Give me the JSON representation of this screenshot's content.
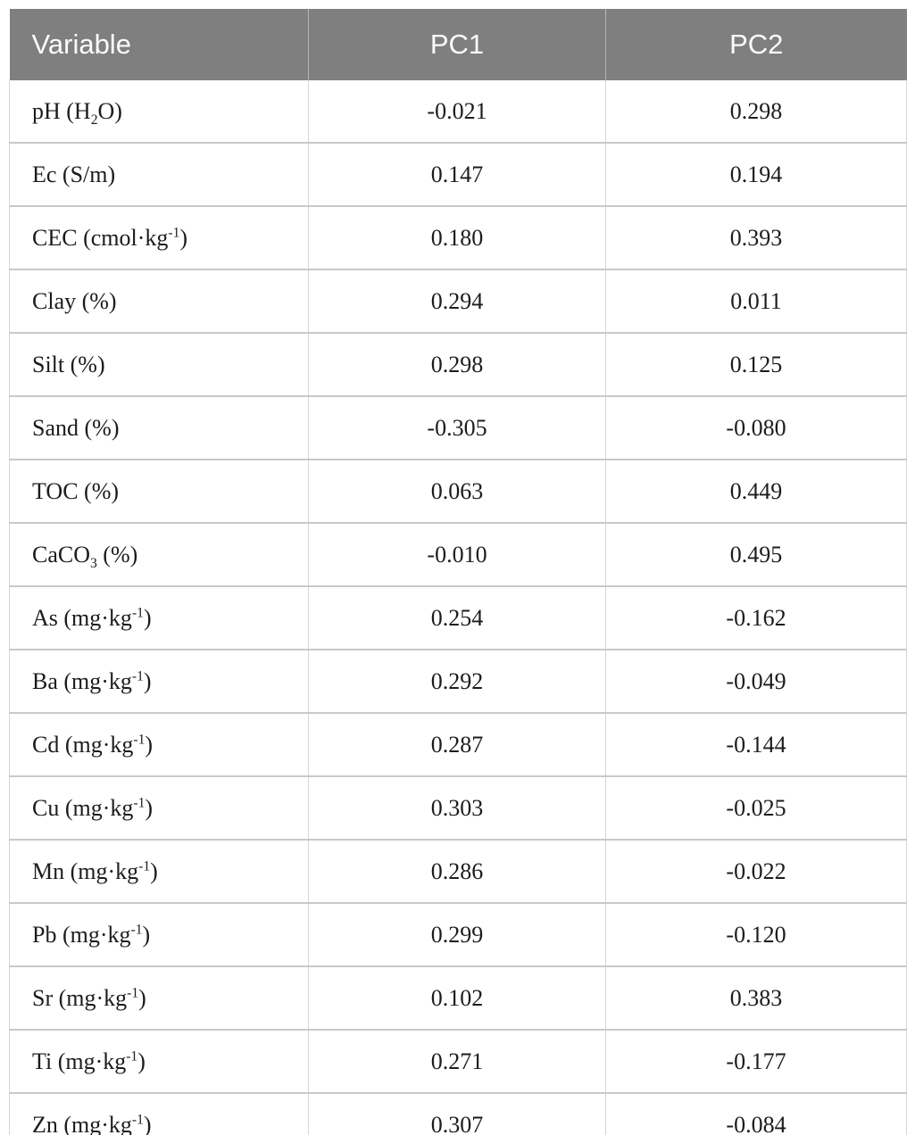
{
  "colors": {
    "header_background": "#7f7f7f",
    "header_text": "#fbfbfb",
    "body_text": "#1c1c1c",
    "grid_line": "#c9c9c9",
    "page_background": "#ffffff"
  },
  "table": {
    "columns": [
      "Variable",
      "PC1",
      "PC2"
    ],
    "rows": [
      {
        "variable": [
          {
            "t": "pH (H"
          },
          {
            "t": "2",
            "s": "sub"
          },
          {
            "t": "O)"
          }
        ],
        "pc1": "-0.021",
        "pc2": "0.298"
      },
      {
        "variable": [
          {
            "t": "Ec (S/m)"
          }
        ],
        "pc1": "0.147",
        "pc2": "0.194"
      },
      {
        "variable": [
          {
            "t": "CEC (cmol·kg"
          },
          {
            "t": "-1",
            "s": "sup"
          },
          {
            "t": ")"
          }
        ],
        "pc1": "0.180",
        "pc2": "0.393"
      },
      {
        "variable": [
          {
            "t": "Clay (%)"
          }
        ],
        "pc1": "0.294",
        "pc2": "0.011"
      },
      {
        "variable": [
          {
            "t": "Silt (%)"
          }
        ],
        "pc1": "0.298",
        "pc2": "0.125"
      },
      {
        "variable": [
          {
            "t": "Sand (%)"
          }
        ],
        "pc1": "-0.305",
        "pc2": "-0.080"
      },
      {
        "variable": [
          {
            "t": "TOC (%)"
          }
        ],
        "pc1": "0.063",
        "pc2": "0.449"
      },
      {
        "variable": [
          {
            "t": "CaCO"
          },
          {
            "t": "3",
            "s": "sub"
          },
          {
            "t": " (%)"
          }
        ],
        "pc1": "-0.010",
        "pc2": "0.495"
      },
      {
        "variable": [
          {
            "t": "As (mg·kg"
          },
          {
            "t": "-1",
            "s": "sup"
          },
          {
            "t": ")"
          }
        ],
        "pc1": "0.254",
        "pc2": "-0.162"
      },
      {
        "variable": [
          {
            "t": "Ba (mg·kg"
          },
          {
            "t": "-1",
            "s": "sup"
          },
          {
            "t": ")"
          }
        ],
        "pc1": "0.292",
        "pc2": "-0.049"
      },
      {
        "variable": [
          {
            "t": "Cd (mg·kg"
          },
          {
            "t": "-1",
            "s": "sup"
          },
          {
            "t": ")"
          }
        ],
        "pc1": "0.287",
        "pc2": "-0.144"
      },
      {
        "variable": [
          {
            "t": "Cu (mg·kg"
          },
          {
            "t": "-1",
            "s": "sup"
          },
          {
            "t": ")"
          }
        ],
        "pc1": "0.303",
        "pc2": "-0.025"
      },
      {
        "variable": [
          {
            "t": "Mn (mg·kg"
          },
          {
            "t": "-1",
            "s": "sup"
          },
          {
            "t": ")"
          }
        ],
        "pc1": "0.286",
        "pc2": "-0.022"
      },
      {
        "variable": [
          {
            "t": "Pb (mg·kg"
          },
          {
            "t": "-1",
            "s": "sup"
          },
          {
            "t": ")"
          }
        ],
        "pc1": "0.299",
        "pc2": "-0.120"
      },
      {
        "variable": [
          {
            "t": "Sr (mg·kg"
          },
          {
            "t": "-1",
            "s": "sup"
          },
          {
            "t": ")"
          }
        ],
        "pc1": "0.102",
        "pc2": "0.383"
      },
      {
        "variable": [
          {
            "t": "Ti (mg·kg"
          },
          {
            "t": "-1",
            "s": "sup"
          },
          {
            "t": ")"
          }
        ],
        "pc1": "0.271",
        "pc2": "-0.177"
      },
      {
        "variable": [
          {
            "t": "Zn (mg·kg"
          },
          {
            "t": "-1",
            "s": "sup"
          },
          {
            "t": ")"
          }
        ],
        "pc1": "0.307",
        "pc2": "-0.084"
      }
    ]
  }
}
